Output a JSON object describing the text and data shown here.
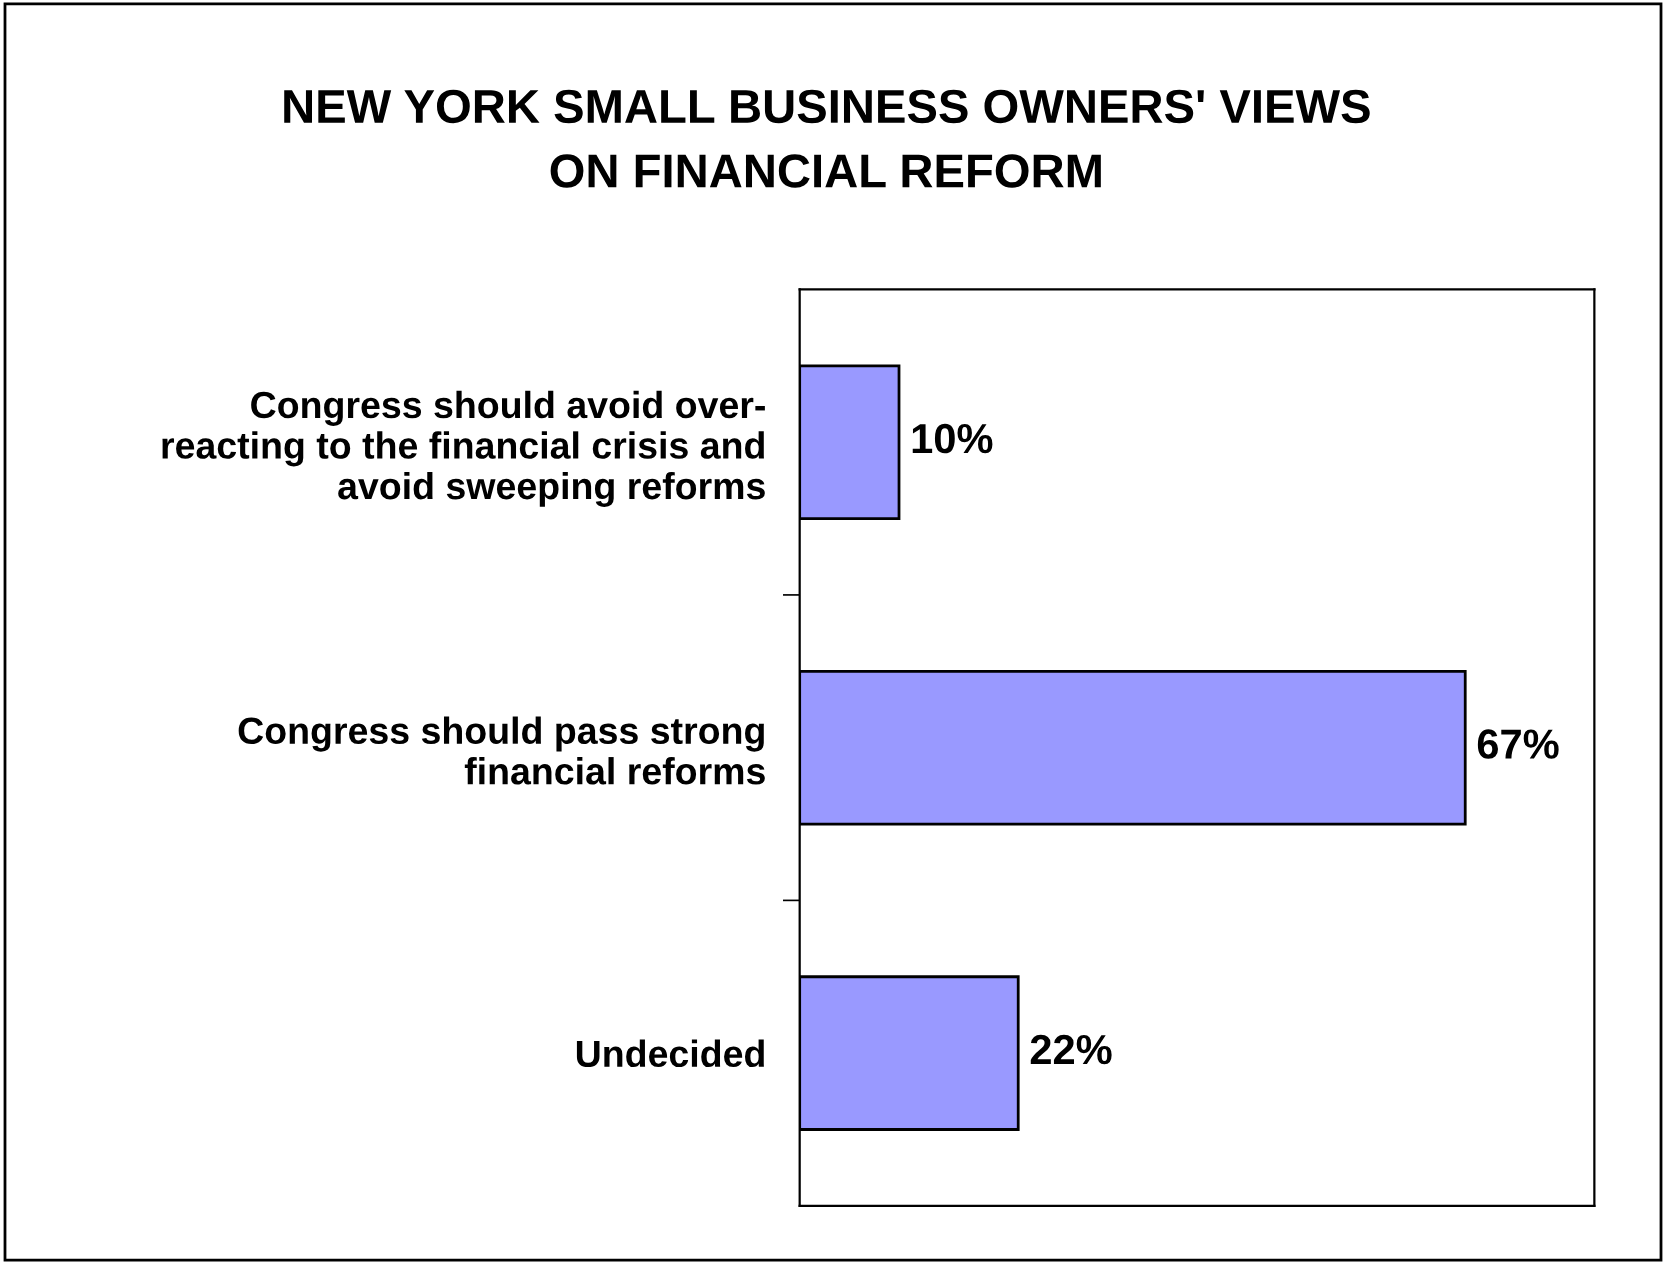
{
  "chart_data": {
    "type": "bar",
    "orientation": "horizontal",
    "title": "NEW YORK SMALL BUSINESS OWNERS' VIEWS\nON FINANCIAL REFORM",
    "categories": [
      "Congress should avoid over-\nreacting to the financial crisis and\navoid sweeping reforms",
      "Congress should pass strong\nfinancial reforms",
      "Undecided"
    ],
    "values": [
      10,
      67,
      22
    ],
    "value_labels": [
      "10%",
      "67%",
      "22%"
    ],
    "color": "#9999ff",
    "xlim": [
      0,
      80
    ],
    "tick_labels": "y",
    "grid": false,
    "legend": false
  }
}
